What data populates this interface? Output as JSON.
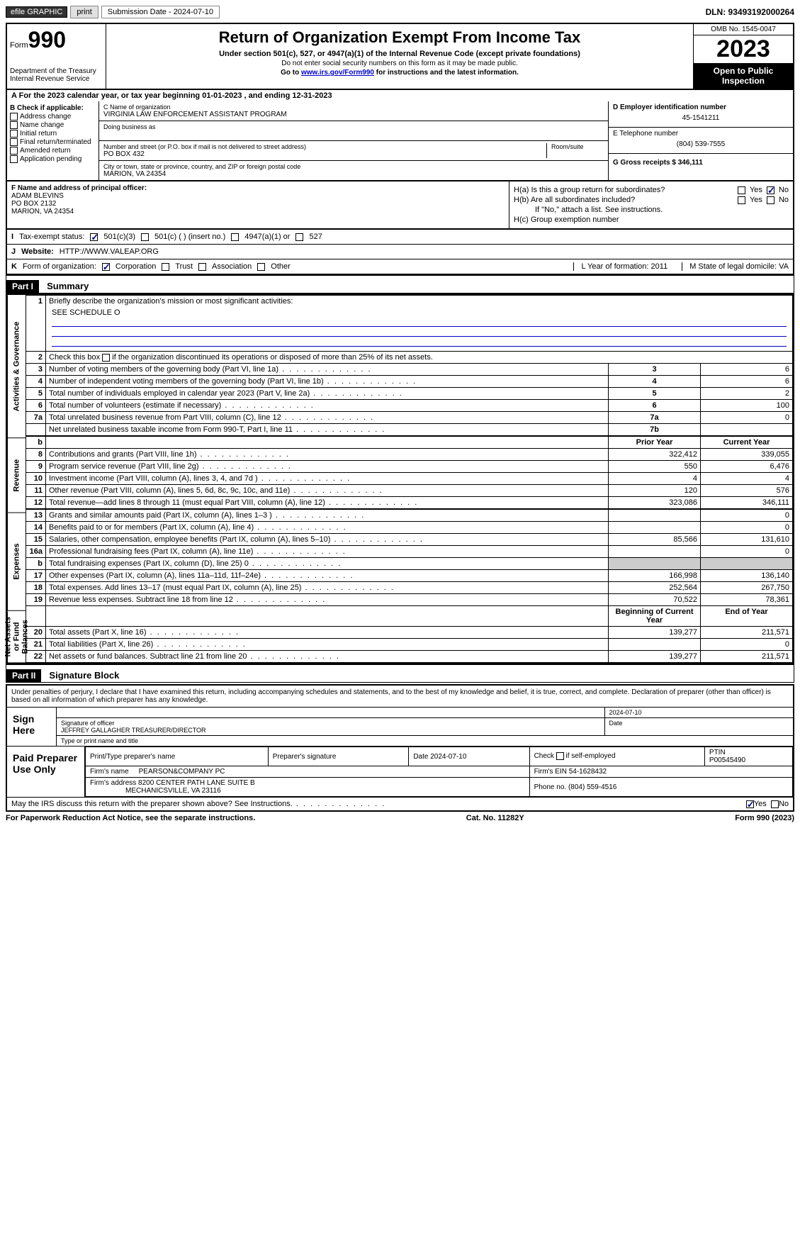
{
  "toolbar": {
    "efile_label": "efile GRAPHIC",
    "print_label": "print",
    "submission_label": "Submission Date - 2024-07-10",
    "dln_label": "DLN: 93493192000264"
  },
  "header": {
    "form_prefix": "Form",
    "form_number": "990",
    "dept1": "Department of the Treasury",
    "dept2": "Internal Revenue Service",
    "title": "Return of Organization Exempt From Income Tax",
    "subtitle": "Under section 501(c), 527, or 4947(a)(1) of the Internal Revenue Code (except private foundations)",
    "note1": "Do not enter social security numbers on this form as it may be made public.",
    "note2_pre": "Go to ",
    "note2_link": "www.irs.gov/Form990",
    "note2_post": " for instructions and the latest information.",
    "omb": "OMB No. 1545-0047",
    "year": "2023",
    "inspection": "Open to Public Inspection"
  },
  "line_a": "For the 2023 calendar year, or tax year beginning 01-01-2023   , and ending 12-31-2023",
  "section_b": {
    "header": "B Check if applicable:",
    "items": [
      "Address change",
      "Name change",
      "Initial return",
      "Final return/terminated",
      "Amended return",
      "Application pending"
    ]
  },
  "section_c": {
    "name_label": "C Name of organization",
    "name": "VIRGINIA LAW ENFORCEMENT ASSISTANT PROGRAM",
    "dba_label": "Doing business as",
    "street_label": "Number and street (or P.O. box if mail is not delivered to street address)",
    "room_label": "Room/suite",
    "street": "PO BOX 432",
    "city_label": "City or town, state or province, country, and ZIP or foreign postal code",
    "city": "MARION, VA  24354"
  },
  "section_d": {
    "ein_label": "D Employer identification number",
    "ein": "45-1541211",
    "phone_label": "E Telephone number",
    "phone": "(804) 539-7555",
    "gross_label": "G Gross receipts $ 346,111"
  },
  "section_f": {
    "label": "F  Name and address of principal officer:",
    "name": "ADAM BLEVINS",
    "addr1": "PO BOX 2132",
    "addr2": "MARION, VA  24354"
  },
  "section_h": {
    "ha_label": "H(a)  Is this a group return for subordinates?",
    "hb_label": "H(b)  Are all subordinates included?",
    "hb_note": "If \"No,\" attach a list. See instructions.",
    "hc_label": "H(c)  Group exemption number",
    "yes": "Yes",
    "no": "No"
  },
  "status": {
    "i_label": "I",
    "i_text": "Tax-exempt status:",
    "i_501c3": "501(c)(3)",
    "i_501c": "501(c) (  ) (insert no.)",
    "i_4947": "4947(a)(1) or",
    "i_527": "527",
    "j_label": "J",
    "j_text": "Website:",
    "j_url": "HTTP://WWW.VALEAP.ORG",
    "k_label": "K",
    "k_text": "Form of organization:",
    "k_corp": "Corporation",
    "k_trust": "Trust",
    "k_assoc": "Association",
    "k_other": "Other",
    "l_text": "L Year of formation: 2011",
    "m_text": "M State of legal domicile: VA"
  },
  "parts": {
    "part1": "Part I",
    "part1_title": "Summary",
    "part2": "Part II",
    "part2_title": "Signature Block"
  },
  "summary": {
    "sides": [
      "Activities & Governance",
      "Revenue",
      "Expenses",
      "Net Assets or Fund Balances"
    ],
    "q1": "Briefly describe the organization's mission or most significant activities:",
    "q1_ans": "SEE SCHEDULE O",
    "q2": "Check this box      if the organization discontinued its operations or disposed of more than 25% of its net assets.",
    "rows_gov": [
      {
        "n": "3",
        "t": "Number of voting members of the governing body (Part VI, line 1a)",
        "i": "3",
        "v": "6"
      },
      {
        "n": "4",
        "t": "Number of independent voting members of the governing body (Part VI, line 1b)",
        "i": "4",
        "v": "6"
      },
      {
        "n": "5",
        "t": "Total number of individuals employed in calendar year 2023 (Part V, line 2a)",
        "i": "5",
        "v": "2"
      },
      {
        "n": "6",
        "t": "Total number of volunteers (estimate if necessary)",
        "i": "6",
        "v": "100"
      },
      {
        "n": "7a",
        "t": "Total unrelated business revenue from Part VIII, column (C), line 12",
        "i": "7a",
        "v": "0"
      },
      {
        "n": "",
        "t": "Net unrelated business taxable income from Form 990-T, Part I, line 11",
        "i": "7b",
        "v": ""
      }
    ],
    "col_prior": "Prior Year",
    "col_current": "Current Year",
    "rows_rev": [
      {
        "n": "8",
        "t": "Contributions and grants (Part VIII, line 1h)",
        "p": "322,412",
        "c": "339,055"
      },
      {
        "n": "9",
        "t": "Program service revenue (Part VIII, line 2g)",
        "p": "550",
        "c": "6,476"
      },
      {
        "n": "10",
        "t": "Investment income (Part VIII, column (A), lines 3, 4, and 7d )",
        "p": "4",
        "c": "4"
      },
      {
        "n": "11",
        "t": "Other revenue (Part VIII, column (A), lines 5, 6d, 8c, 9c, 10c, and 11e)",
        "p": "120",
        "c": "576"
      },
      {
        "n": "12",
        "t": "Total revenue—add lines 8 through 11 (must equal Part VIII, column (A), line 12)",
        "p": "323,086",
        "c": "346,111"
      }
    ],
    "rows_exp": [
      {
        "n": "13",
        "t": "Grants and similar amounts paid (Part IX, column (A), lines 1–3 )",
        "p": "",
        "c": "0"
      },
      {
        "n": "14",
        "t": "Benefits paid to or for members (Part IX, column (A), line 4)",
        "p": "",
        "c": "0"
      },
      {
        "n": "15",
        "t": "Salaries, other compensation, employee benefits (Part IX, column (A), lines 5–10)",
        "p": "85,566",
        "c": "131,610"
      },
      {
        "n": "16a",
        "t": "Professional fundraising fees (Part IX, column (A), line 11e)",
        "p": "",
        "c": "0"
      },
      {
        "n": "b",
        "t": "Total fundraising expenses (Part IX, column (D), line 25) 0",
        "p": "SHADE",
        "c": "SHADE"
      },
      {
        "n": "17",
        "t": "Other expenses (Part IX, column (A), lines 11a–11d, 11f–24e)",
        "p": "166,998",
        "c": "136,140"
      },
      {
        "n": "18",
        "t": "Total expenses. Add lines 13–17 (must equal Part IX, column (A), line 25)",
        "p": "252,564",
        "c": "267,750"
      },
      {
        "n": "19",
        "t": "Revenue less expenses. Subtract line 18 from line 12",
        "p": "70,522",
        "c": "78,361"
      }
    ],
    "col_begin": "Beginning of Current Year",
    "col_end": "End of Year",
    "rows_net": [
      {
        "n": "20",
        "t": "Total assets (Part X, line 16)",
        "p": "139,277",
        "c": "211,571"
      },
      {
        "n": "21",
        "t": "Total liabilities (Part X, line 26)",
        "p": "",
        "c": "0"
      },
      {
        "n": "22",
        "t": "Net assets or fund balances. Subtract line 21 from line 20",
        "p": "139,277",
        "c": "211,571"
      }
    ]
  },
  "signature": {
    "perjury": "Under penalties of perjury, I declare that I have examined this return, including accompanying schedules and statements, and to the best of my knowledge and belief, it is true, correct, and complete. Declaration of preparer (other than officer) is based on all information of which preparer has any knowledge.",
    "sign_here": "Sign Here",
    "sig_label": "Signature of officer",
    "sig_name": "JEFFREY GALLAGHER  TREASURER/DIRECTOR",
    "sig_type": "Type or print name and title",
    "date_label": "Date",
    "date_val": "2024-07-10",
    "paid_label": "Paid Preparer Use Only",
    "prep_name_label": "Print/Type preparer's name",
    "prep_sig_label": "Preparer's signature",
    "prep_date": "Date 2024-07-10",
    "prep_check": "Check      if self-employed",
    "ptin_label": "PTIN",
    "ptin": "P00545490",
    "firm_name_label": "Firm's name",
    "firm_name": "PEARSON&COMPANY PC",
    "firm_ein_label": "Firm's EIN",
    "firm_ein": "54-1628432",
    "firm_addr_label": "Firm's address",
    "firm_addr": "8200 CENTER PATH LANE SUITE B",
    "firm_city": "MECHANICSVILLE, VA  23116",
    "firm_phone_label": "Phone no.",
    "firm_phone": "(804) 559-4516",
    "discuss": "May the IRS discuss this return with the preparer shown above? See Instructions.",
    "yes": "Yes",
    "no": "No"
  },
  "footer": {
    "paperwork": "For Paperwork Reduction Act Notice, see the separate instructions.",
    "cat": "Cat. No. 11282Y",
    "form": "Form 990 (2023)"
  }
}
